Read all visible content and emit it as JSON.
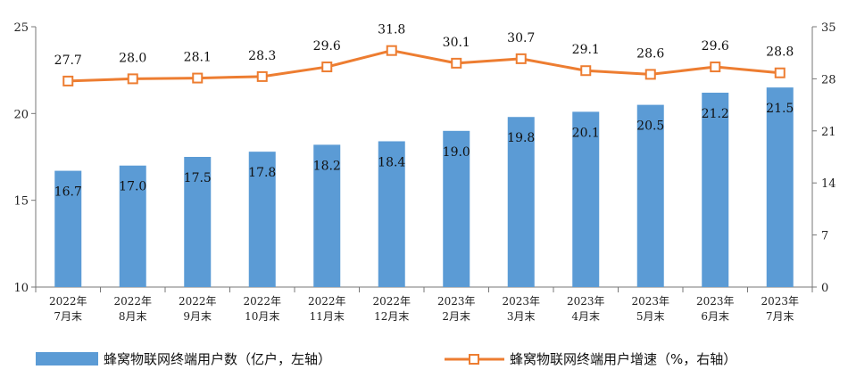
{
  "chart_data": {
    "type": "bar+line",
    "categories": [
      [
        "2022年",
        "7月末"
      ],
      [
        "2022年",
        "8月末"
      ],
      [
        "2022年",
        "9月末"
      ],
      [
        "2022年",
        "10月末"
      ],
      [
        "2022年",
        "11月末"
      ],
      [
        "2022年",
        "12月末"
      ],
      [
        "2023年",
        "2月末"
      ],
      [
        "2023年",
        "3月末"
      ],
      [
        "2023年",
        "4月末"
      ],
      [
        "2023年",
        "5月末"
      ],
      [
        "2023年",
        "6月末"
      ],
      [
        "2023年",
        "7月末"
      ]
    ],
    "series": [
      {
        "name": "蜂窝物联网终端用户数（亿户，左轴）",
        "type": "bar",
        "axis": "left",
        "color": "#5b9bd5",
        "values": [
          16.7,
          17.0,
          17.5,
          17.8,
          18.2,
          18.4,
          19.0,
          19.8,
          20.1,
          20.5,
          21.2,
          21.5
        ],
        "labels": [
          "16.7",
          "17.0",
          "17.5",
          "17.8",
          "18.2",
          "18.4",
          "19.0",
          "19.8",
          "20.1",
          "20.5",
          "21.2",
          "21.5"
        ]
      },
      {
        "name": "蜂窝物联网终端用户增速（%，右轴）",
        "type": "line",
        "axis": "right",
        "color": "#ed7d31",
        "values": [
          27.7,
          28.0,
          28.1,
          28.3,
          29.6,
          31.8,
          30.1,
          30.7,
          29.1,
          28.6,
          29.6,
          28.8
        ],
        "labels": [
          "27.7",
          "28.0",
          "28.1",
          "28.3",
          "29.6",
          "31.8",
          "30.1",
          "30.7",
          "29.1",
          "28.6",
          "29.6",
          "28.8"
        ]
      }
    ],
    "left_axis": {
      "range": [
        10,
        25
      ],
      "ticks": [
        "10",
        "15",
        "20",
        "25"
      ]
    },
    "right_axis": {
      "range": [
        0,
        35
      ],
      "ticks": [
        "0",
        "7",
        "14",
        "21",
        "28",
        "35"
      ]
    },
    "grid": false,
    "legend_position": "bottom"
  }
}
